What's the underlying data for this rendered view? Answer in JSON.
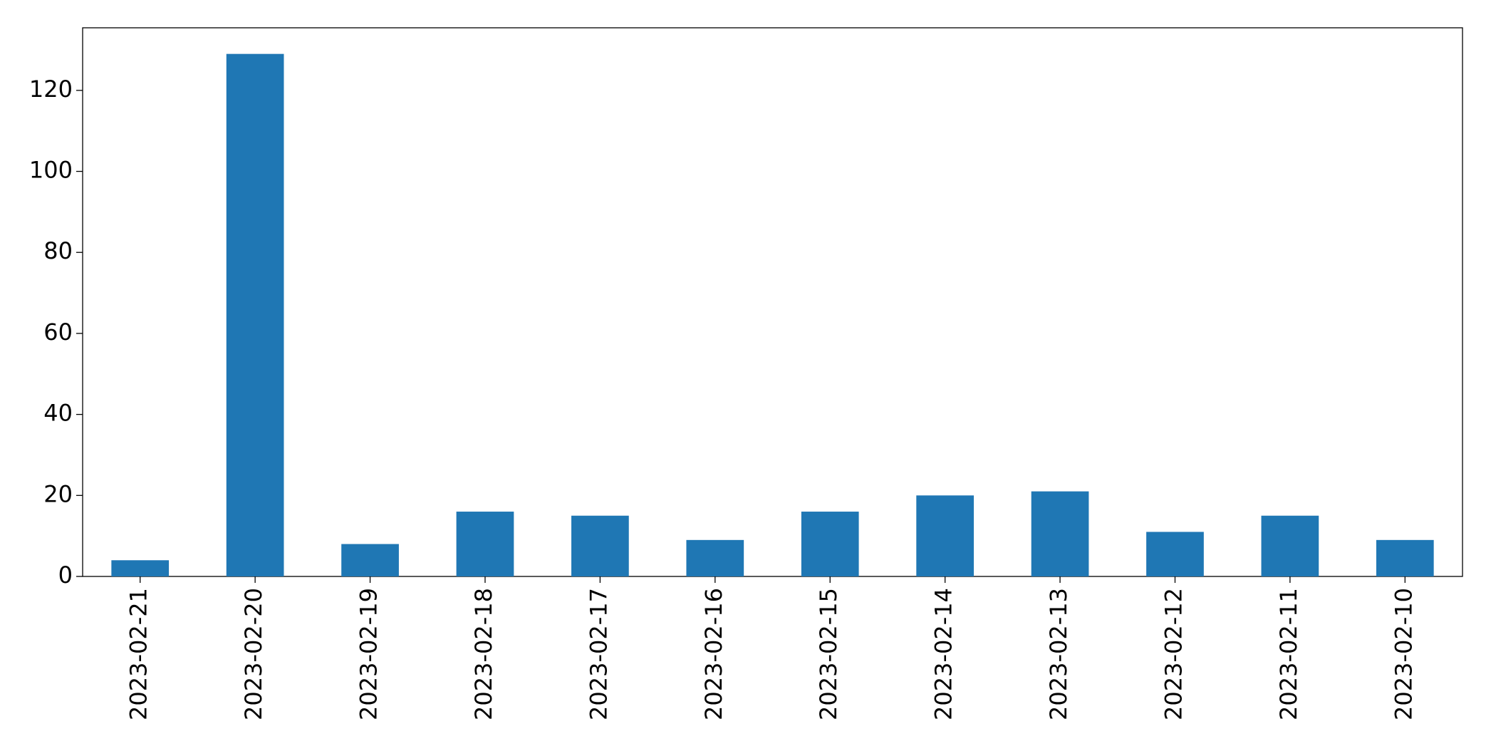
{
  "chart_data": {
    "type": "bar",
    "categories": [
      "2023-02-21",
      "2023-02-20",
      "2023-02-19",
      "2023-02-18",
      "2023-02-17",
      "2023-02-16",
      "2023-02-15",
      "2023-02-14",
      "2023-02-13",
      "2023-02-12",
      "2023-02-11",
      "2023-02-10"
    ],
    "values": [
      4,
      129,
      8,
      16,
      15,
      9,
      16,
      20,
      21,
      11,
      15,
      9
    ],
    "color": "#1f77b4",
    "ylim": [
      0,
      135.45
    ],
    "yticks": [
      0,
      20,
      40,
      60,
      80,
      100,
      120
    ],
    "grid": false
  }
}
